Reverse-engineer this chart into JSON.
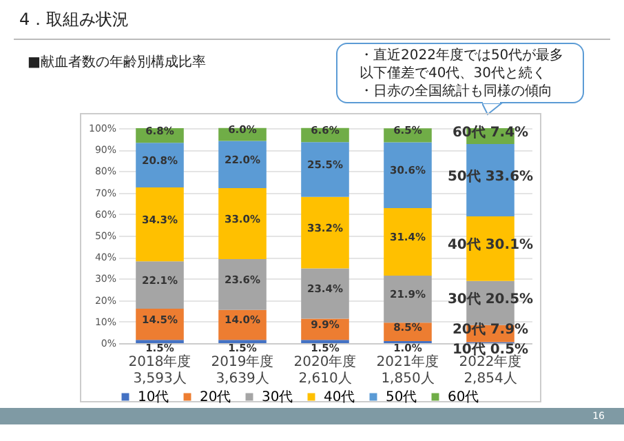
{
  "chart_data": {
    "type": "bar",
    "title": "4．取組み状況",
    "subtitle": "■献血者数の年齢別構成比率",
    "annotations": [
      "・直近2022年度では50代が最多",
      "以下僅差で40代、30代と続く",
      "・日赤の全国統計も同様の傾向",
      "16"
    ],
    "categories": [
      "2018年度\n3,593人",
      "2019年度\n3,639人",
      "2020年度\n2,610人",
      "2021年度\n1,850人",
      "2022年度\n2,854人"
    ],
    "stacked": true,
    "series": [
      {
        "name": "10代",
        "color": "#4472c4",
        "values": [
          1.5,
          1.5,
          1.5,
          1.0,
          0.5
        ],
        "value_labels": [
          "1.5%",
          "1.5%",
          "1.5%",
          "1.0%",
          "10代 0.5%"
        ]
      },
      {
        "name": "20代",
        "color": "#ed7d31",
        "values": [
          14.5,
          14.0,
          9.9,
          8.5,
          7.9
        ],
        "value_labels": [
          "14.5%",
          "14.0%",
          "9.9%",
          "8.5%",
          "20代 7.9%"
        ]
      },
      {
        "name": "30代",
        "color": "#a5a5a5",
        "values": [
          22.1,
          23.6,
          23.4,
          21.9,
          20.5
        ],
        "value_labels": [
          "22.1%",
          "23.6%",
          "23.4%",
          "21.9%",
          "30代 20.5%"
        ]
      },
      {
        "name": "40代",
        "color": "#ffc000",
        "values": [
          34.3,
          33.0,
          33.2,
          31.4,
          30.1
        ],
        "value_labels": [
          "34.3%",
          "33.0%",
          "33.2%",
          "31.4%",
          "40代 30.1%"
        ]
      },
      {
        "name": "50代",
        "color": "#5b9bd5",
        "values": [
          20.8,
          22.0,
          25.5,
          30.6,
          33.6
        ],
        "value_labels": [
          "20.8%",
          "22.0%",
          "25.5%",
          "30.6%",
          "50代 33.6%"
        ]
      },
      {
        "name": "60代",
        "color": "#70ad47",
        "values": [
          6.8,
          6.0,
          6.6,
          6.5,
          7.4
        ],
        "value_labels": [
          "6.8%",
          "6.0%",
          "6.6%",
          "6.5%",
          "60代 7.4%"
        ]
      }
    ],
    "ylim": [
      0,
      100
    ],
    "yticks": [
      {
        "value": 0,
        "label": "0%"
      },
      {
        "value": 10,
        "label": "10%"
      },
      {
        "value": 20,
        "label": "20%"
      },
      {
        "value": 30,
        "label": "30%"
      },
      {
        "value": 40,
        "label": "40%"
      },
      {
        "value": 50,
        "label": "50%"
      },
      {
        "value": 60,
        "label": "60%"
      },
      {
        "value": 70,
        "label": "70%"
      },
      {
        "value": 80,
        "label": "80%"
      },
      {
        "value": 90,
        "label": "90%"
      },
      {
        "value": 100,
        "label": "100%"
      }
    ],
    "grid": "y",
    "legend": "bottom"
  }
}
